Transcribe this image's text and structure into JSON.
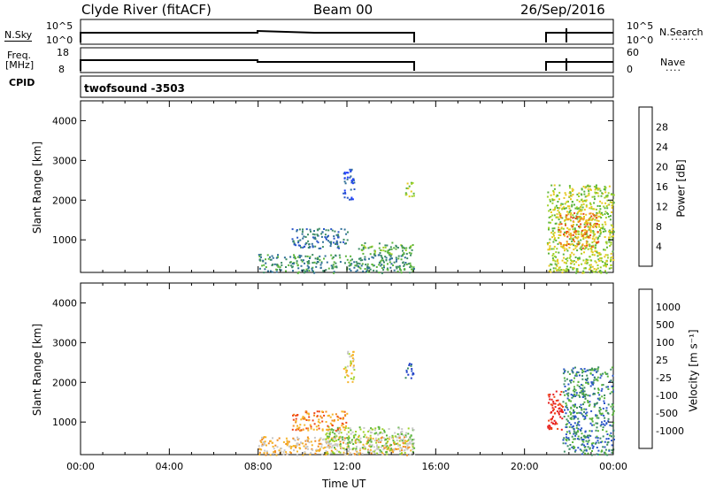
{
  "header": {
    "station": "Clyde River (fitACF)",
    "beam": "Beam 00",
    "date": "26/Sep/2016"
  },
  "panels": {
    "nsky": {
      "left_label": "N.Sky",
      "tick_top": "10^5",
      "tick_bottom": "10^0",
      "right_label": "N.Search",
      "right_tick_top": "10^5",
      "right_tick_bottom": "10^0"
    },
    "freq": {
      "left_label_top": "Freq.",
      "left_label_bottom": "[MHz]",
      "tick_top": "18",
      "tick_bottom": "8",
      "right_label": "Nave",
      "right_tick_top": "60",
      "right_tick_bottom": "0"
    },
    "cpid": {
      "label": "CPID",
      "value": "twofsound -3503"
    }
  },
  "colors": {
    "power": [
      "#1e3cff",
      "#2a55c8",
      "#2e6e96",
      "#3c8c64",
      "#5ab43c",
      "#a0d228",
      "#e6c81e",
      "#f0961e",
      "#e64614",
      "#e61e1e"
    ],
    "velocity": [
      "#e61e1e",
      "#f04614",
      "#f08c1e",
      "#f5b428",
      "#c8c8c8",
      "#a0d228",
      "#5ab43c",
      "#3c8c64",
      "#2a55c8",
      "#1e3cc8"
    ]
  },
  "chart_data": [
    {
      "type": "heatmap",
      "name": "power",
      "ylabel": "Slant Range [km]",
      "colorbar_label": "Power [dB]",
      "colorbar_ticks": [
        "4",
        "8",
        "12",
        "16",
        "20",
        "24",
        "28"
      ],
      "yticks": [
        "1000",
        "2000",
        "3000",
        "4000"
      ],
      "ylim": [
        180,
        4500
      ],
      "xlim_hours": [
        0,
        24
      ],
      "regions": [
        {
          "x0": 8.0,
          "x1": 15.0,
          "y0": 180,
          "y1": 650,
          "level": 3
        },
        {
          "x0": 12.5,
          "x1": 15.0,
          "y0": 650,
          "y1": 950,
          "level": 4
        },
        {
          "x0": 9.5,
          "x1": 12.0,
          "y0": 800,
          "y1": 1300,
          "level": 2
        },
        {
          "x0": 11.8,
          "x1": 12.3,
          "y0": 2000,
          "y1": 2800,
          "level": 1
        },
        {
          "x0": 14.6,
          "x1": 15.0,
          "y0": 2100,
          "y1": 2500,
          "level": 5
        },
        {
          "x0": 21.0,
          "x1": 24.0,
          "y0": 180,
          "y1": 2400,
          "level": 5
        },
        {
          "x0": 21.5,
          "x1": 23.3,
          "y0": 800,
          "y1": 1700,
          "level": 7
        }
      ]
    },
    {
      "type": "heatmap",
      "name": "velocity",
      "ylabel": "Slant Range [km]",
      "colorbar_label": "Velocity [m s⁻¹]",
      "colorbar_ticks": [
        "-1000",
        "-500",
        "-100",
        "-25",
        "25",
        "100",
        "500",
        "1000"
      ],
      "yticks": [
        "1000",
        "2000",
        "3000",
        "4000"
      ],
      "ylim": [
        180,
        4500
      ],
      "xlim_hours": [
        0,
        24
      ],
      "regions": [
        {
          "x0": 8.0,
          "x1": 15.0,
          "y0": 180,
          "y1": 650,
          "level": 3
        },
        {
          "x0": 11.0,
          "x1": 15.0,
          "y0": 200,
          "y1": 900,
          "level": 5
        },
        {
          "x0": 9.5,
          "x1": 12.0,
          "y0": 800,
          "y1": 1300,
          "level": 2
        },
        {
          "x0": 11.8,
          "x1": 12.3,
          "y0": 2000,
          "y1": 2800,
          "level": 4
        },
        {
          "x0": 14.6,
          "x1": 15.0,
          "y0": 2100,
          "y1": 2500,
          "level": 8
        },
        {
          "x0": 21.0,
          "x1": 21.7,
          "y0": 800,
          "y1": 1800,
          "level": 0
        },
        {
          "x0": 21.7,
          "x1": 24.0,
          "y0": 180,
          "y1": 2400,
          "level": 7
        }
      ]
    }
  ],
  "xaxis": {
    "ticks": [
      "00:00",
      "04:00",
      "08:00",
      "12:00",
      "16:00",
      "20:00",
      "00:00"
    ],
    "label": "Time UT"
  }
}
